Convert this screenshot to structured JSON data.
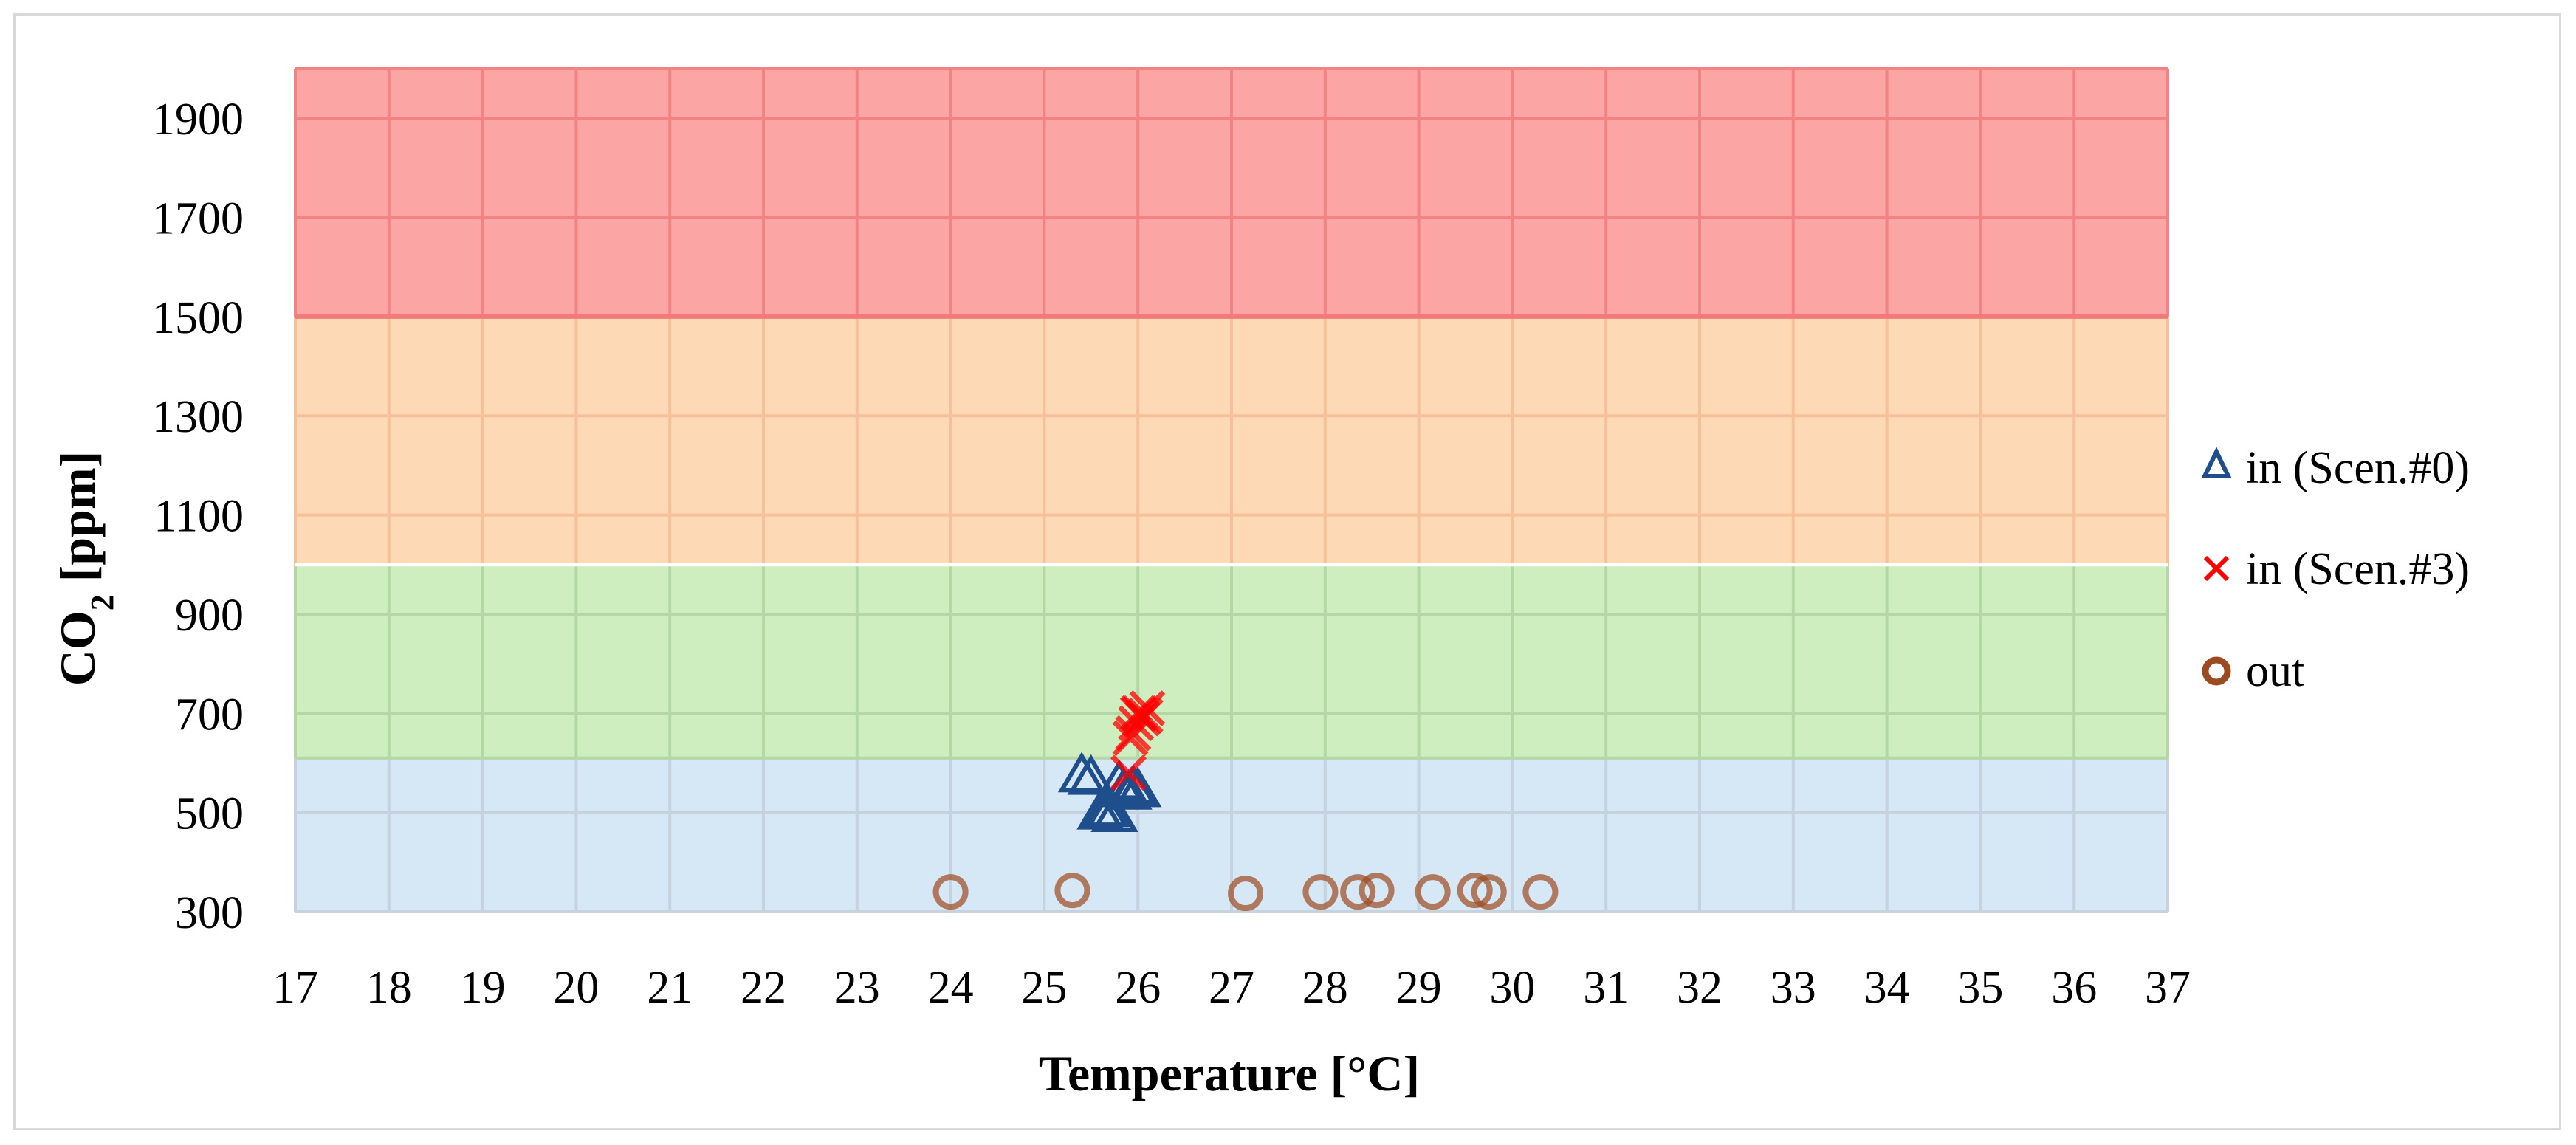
{
  "chart_data": {
    "type": "scatter",
    "title": "",
    "xlabel": "Temperature [°C]",
    "ylabel_main": "CO",
    "ylabel_sub": "2",
    "ylabel_unit": " [ppm]",
    "xlim": [
      17,
      37
    ],
    "ylim": [
      300,
      2000
    ],
    "x_ticks": [
      "17",
      "18",
      "19",
      "20",
      "21",
      "22",
      "23",
      "24",
      "25",
      "26",
      "27",
      "28",
      "29",
      "30",
      "31",
      "32",
      "33",
      "34",
      "35",
      "36",
      "37"
    ],
    "y_ticks": [
      "300",
      "500",
      "700",
      "900",
      "1100",
      "1300",
      "1500",
      "1700",
      "1900"
    ],
    "grid": true,
    "legend_position": "right",
    "bands": [
      {
        "name": "blue-zone",
        "y0": 300,
        "y1": 610,
        "color": "#d6e7f5"
      },
      {
        "name": "green-zone",
        "y0": 610,
        "y1": 1000,
        "color": "#cfeec0"
      },
      {
        "name": "orange-zone",
        "y0": 1000,
        "y1": 1500,
        "color": "#fdd9b5"
      },
      {
        "name": "red-zone",
        "y0": 1500,
        "y1": 2000,
        "color": "#fca5a5"
      }
    ],
    "band_grid_colors": {
      "blue-zone": "#c6d3df",
      "green-zone": "#b3d8a6",
      "orange-zone": "#f6c19a",
      "red-zone": "#f28383"
    },
    "series": [
      {
        "name": "in (Scen.#0)",
        "marker": "triangle",
        "color": "#1f4e8c",
        "x": [
          25.4,
          25.5,
          25.6,
          25.7,
          25.8,
          25.85,
          25.9,
          25.95,
          26.0,
          25.75,
          25.65
        ],
        "y": [
          575,
          570,
          500,
          505,
          560,
          545,
          540,
          550,
          545,
          495,
          505
        ]
      },
      {
        "name": "in (Scen.#3)",
        "marker": "cross",
        "color": "#ff0000",
        "x": [
          25.9,
          25.95,
          26.0,
          26.05,
          26.1,
          25.98,
          26.02,
          26.08,
          25.92
        ],
        "y": [
          580,
          660,
          700,
          690,
          710,
          680,
          700,
          695,
          650
        ]
      },
      {
        "name": "out",
        "marker": "circle",
        "color": "#9c4a1f",
        "x": [
          24.0,
          25.3,
          27.15,
          27.95,
          28.35,
          28.55,
          29.15,
          29.6,
          29.75,
          30.3
        ],
        "y": [
          340,
          343,
          337,
          340,
          340,
          343,
          340,
          343,
          340,
          340
        ]
      }
    ]
  }
}
